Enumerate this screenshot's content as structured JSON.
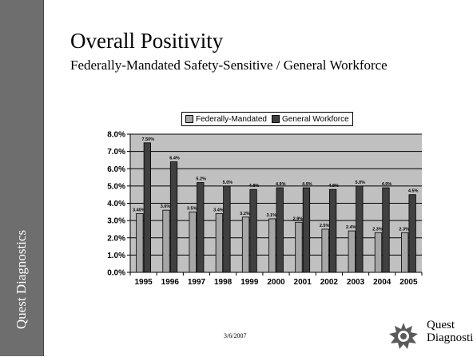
{
  "sidebar": {
    "brand": "Quest Diagnostics"
  },
  "slide": {
    "title": "Overall Positivity",
    "subtitle": "Federally-Mandated Safety-Sensitive / General Workforce",
    "date": "3/6/2007"
  },
  "logo": {
    "line1": "Quest",
    "line2": "Diagnostics"
  },
  "colors": {
    "federally_mandated": "#a6a6a6",
    "general_workforce": "#404040",
    "plot_background": "#c0c0c0",
    "sidebar": "#6e6e6e"
  },
  "chart_data": {
    "type": "bar",
    "categories": [
      "1995",
      "1996",
      "1997",
      "1998",
      "1999",
      "2000",
      "2001",
      "2002",
      "2003",
      "2004",
      "2005"
    ],
    "series": [
      {
        "name": "Federally-Mandated",
        "values": [
          3.4,
          3.6,
          3.5,
          3.4,
          3.2,
          3.1,
          2.9,
          2.5,
          2.4,
          2.3,
          2.3
        ],
        "labels": [
          "3.40%",
          "3.6%",
          "3.5%",
          "3.4%",
          "3.2%",
          "3.1%",
          "2.9%",
          "2.5%",
          "2.4%",
          "2.3%",
          "2.3%"
        ]
      },
      {
        "name": "General Workforce",
        "values": [
          7.5,
          6.4,
          5.2,
          5.0,
          4.8,
          4.9,
          4.9,
          4.8,
          5.0,
          4.9,
          4.5
        ],
        "labels": [
          "7.50%",
          "6.4%",
          "5.2%",
          "5.0%",
          "4.8%",
          "4.9%",
          "4.9%",
          "4.8%",
          "5.0%",
          "4.9%",
          "4.5%"
        ]
      }
    ],
    "y_ticks": [
      "0.0%",
      "1.0%",
      "2.0%",
      "3.0%",
      "4.0%",
      "5.0%",
      "6.0%",
      "7.0%",
      "8.0%"
    ],
    "ylim": [
      0,
      8
    ],
    "grid": true,
    "legend_position": "top"
  }
}
